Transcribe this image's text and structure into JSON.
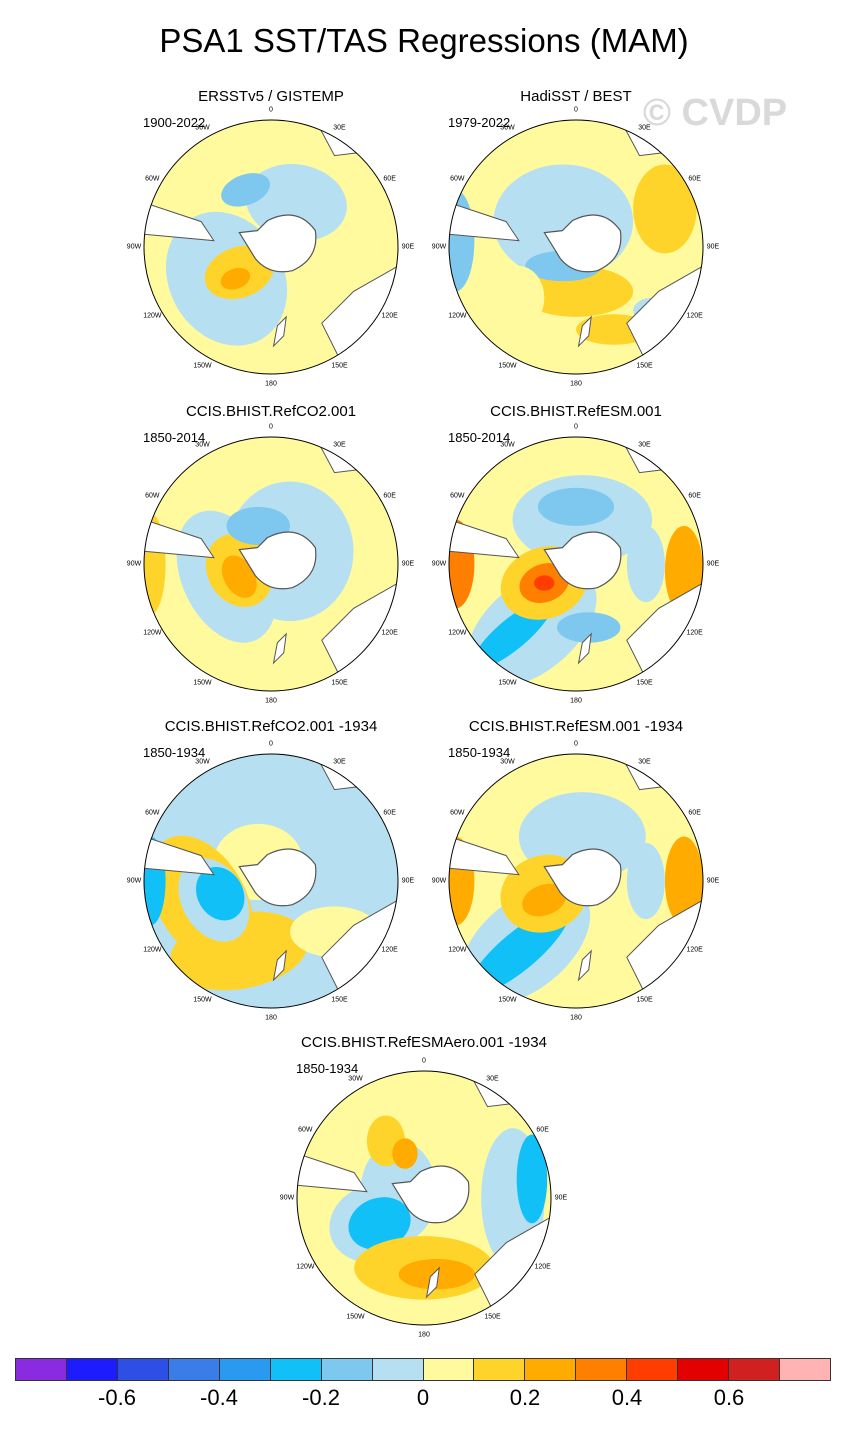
{
  "title": "PSA1 SST/TAS Regressions (MAM)",
  "watermark": "© CVDP",
  "panels": [
    {
      "title": "ERSSTv5 / GISTEMP",
      "years": "1900-2022",
      "pattern": 0
    },
    {
      "title": "HadiSST / BEST",
      "years": "1979-2022",
      "pattern": 1
    },
    {
      "title": "CCIS.BHIST.RefCO2.001",
      "years": "1850-2014",
      "pattern": 2
    },
    {
      "title": "CCIS.BHIST.RefESM.001",
      "years": "1850-2014",
      "pattern": 3
    },
    {
      "title": "CCIS.BHIST.RefCO2.001 -1934",
      "years": "1850-1934",
      "pattern": 4
    },
    {
      "title": "CCIS.BHIST.RefESM.001 -1934",
      "years": "1850-1934",
      "pattern": 5
    },
    {
      "title": "CCIS.BHIST.RefESMAero.001 -1934",
      "years": "1850-1934",
      "pattern": 6
    }
  ],
  "lon_labels": [
    "0",
    "30E",
    "60E",
    "90E",
    "120E",
    "150E",
    "180",
    "150W",
    "120W",
    "90W",
    "60W",
    "30W"
  ],
  "colorbar": {
    "colors": [
      "#8a2be2",
      "#1c1cff",
      "#2e4fe6",
      "#3a7ce8",
      "#2a9af0",
      "#12c0f8",
      "#7ec8ef",
      "#b6e0f2",
      "#fffa9e",
      "#ffd42a",
      "#ffab00",
      "#ff7f00",
      "#ff3d00",
      "#e30000",
      "#d02020",
      "#ffb3b3"
    ],
    "labels": [
      "-0.6",
      "-0.4",
      "-0.2",
      "0",
      "0.2",
      "0.4",
      "0.6"
    ]
  }
}
